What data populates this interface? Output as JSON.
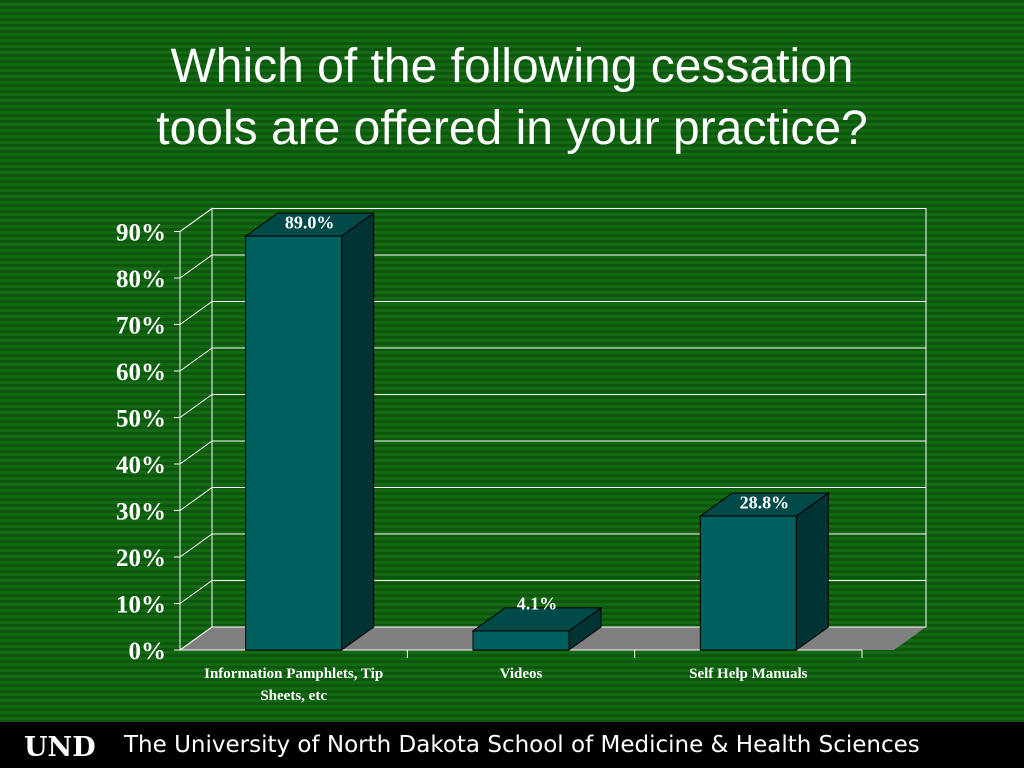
{
  "slide": {
    "title_line1": "Which of the following cessation",
    "title_line2": "tools are offered in your practice?"
  },
  "chart_data": {
    "type": "bar",
    "categories": [
      "Information Pamphlets, Tip Sheets, etc",
      "Videos",
      "Self Help Manuals"
    ],
    "category_lines": [
      [
        "Information Pamphlets, Tip",
        "Sheets, etc"
      ],
      [
        "Videos"
      ],
      [
        "Self Help Manuals"
      ]
    ],
    "values": [
      89.0,
      4.1,
      28.8
    ],
    "data_labels": [
      "89.0%",
      "4.1%",
      "28.8%"
    ],
    "ylim": [
      0,
      90
    ],
    "yticks": [
      0,
      10,
      20,
      30,
      40,
      50,
      60,
      70,
      80,
      90
    ],
    "ytick_labels": [
      "0%",
      "10%",
      "20%",
      "30%",
      "40%",
      "50%",
      "60%",
      "70%",
      "80%",
      "90%"
    ],
    "grid": true,
    "three_d": true,
    "colors": {
      "bar_front": "#005f5f",
      "bar_side": "#003333",
      "bar_top": "#004a4a",
      "floor": "#808080",
      "gridline": "#ffffff",
      "text": "#ffffff"
    }
  },
  "footer": {
    "logo_text": "UND",
    "institution": "The University of North Dakota School of Medicine & Health Sciences"
  }
}
